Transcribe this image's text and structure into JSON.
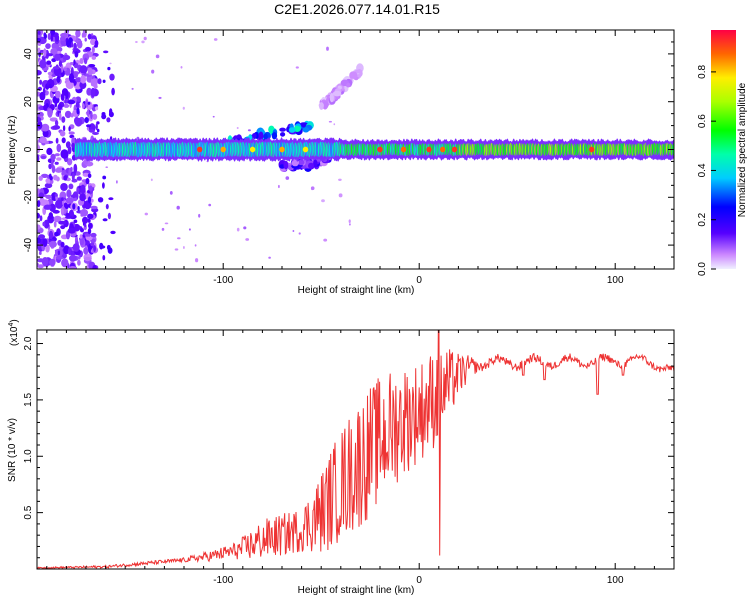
{
  "title": "C2E1.2026.077.14.01.R15",
  "chart_data": [
    {
      "type": "heatmap",
      "xlabel": "Height of straight line (km)",
      "ylabel": "Frequency (Hz)",
      "xlim": [
        -195,
        130
      ],
      "ylim": [
        -50,
        50
      ],
      "xticks": [
        -100,
        0,
        100
      ],
      "yticks": [
        40,
        20,
        0,
        -20,
        -40
      ],
      "colorbar": {
        "label": "Normalized spectral amplitude",
        "range": [
          0.0,
          0.97
        ],
        "ticks": [
          0.0,
          0.2,
          0.4,
          0.6,
          0.8
        ]
      },
      "features": [
        {
          "name": "noisy-band",
          "x_range": [
            -195,
            -165
          ],
          "y_range": [
            -50,
            50
          ],
          "amplitude": 0.05
        },
        {
          "name": "main-signal",
          "x_range": [
            -175,
            130
          ],
          "center_hz": 0,
          "spread_hz": 2.5,
          "amplitude": 0.6
        },
        {
          "name": "drift-branch-upper",
          "points": [
            [
              -110,
              0
            ],
            [
              -90,
              4
            ],
            [
              -75,
              7
            ],
            [
              -55,
              10
            ]
          ],
          "amplitude": 0.3
        },
        {
          "name": "drift-branch-high",
          "points": [
            [
              -50,
              18
            ],
            [
              -40,
              25
            ],
            [
              -30,
              33
            ]
          ],
          "amplitude": 0.05
        },
        {
          "name": "drift-branch-lower",
          "points": [
            [
              -70,
              -7
            ],
            [
              -55,
              -6
            ],
            [
              -45,
              -3
            ]
          ],
          "amplitude": 0.15
        }
      ]
    },
    {
      "type": "line",
      "xlabel": "Height of straight line (km)",
      "ylabel": "SNR (10 * v/v)",
      "scale_label": "(x10",
      "scale_exp": "4",
      "scale_close": ")",
      "xlim": [
        -195,
        130
      ],
      "ylim": [
        0,
        2.12
      ],
      "xticks": [
        -100,
        0,
        100
      ],
      "yticks": [
        0.5,
        1.0,
        1.5,
        2.0
      ],
      "ytick_labels": [
        "0.5",
        "1.0",
        "1.5",
        "2.0"
      ],
      "color": "#ee3333",
      "trend": [
        [
          -195,
          0.01
        ],
        [
          -160,
          0.02
        ],
        [
          -140,
          0.05
        ],
        [
          -120,
          0.08
        ],
        [
          -105,
          0.12
        ],
        [
          -90,
          0.18
        ],
        [
          -80,
          0.26
        ],
        [
          -70,
          0.3
        ],
        [
          -60,
          0.35
        ],
        [
          -50,
          0.5
        ],
        [
          -40,
          0.75
        ],
        [
          -30,
          0.95
        ],
        [
          -20,
          1.15
        ],
        [
          -10,
          1.3
        ],
        [
          0,
          1.4
        ],
        [
          10,
          1.55
        ],
        [
          20,
          1.72
        ],
        [
          30,
          1.83
        ],
        [
          50,
          1.83
        ],
        [
          70,
          1.84
        ],
        [
          90,
          1.84
        ],
        [
          110,
          1.85
        ],
        [
          120,
          1.83
        ],
        [
          130,
          1.74
        ]
      ],
      "noise": [
        [
          -195,
          0.005
        ],
        [
          -120,
          0.02
        ],
        [
          -95,
          0.07
        ],
        [
          -80,
          0.18
        ],
        [
          -60,
          0.2
        ],
        [
          -45,
          0.45
        ],
        [
          -30,
          0.6
        ],
        [
          -15,
          0.55
        ],
        [
          0,
          0.45
        ],
        [
          10,
          0.45
        ],
        [
          20,
          0.2
        ],
        [
          30,
          0.04
        ],
        [
          130,
          0.03
        ]
      ],
      "dips": [
        [
          10,
          0.12
        ],
        [
          91,
          1.55
        ],
        [
          64,
          1.68
        ],
        [
          53,
          1.72
        ],
        [
          104,
          1.72
        ]
      ],
      "spikes": [
        [
          10,
          2.12
        ]
      ]
    }
  ]
}
